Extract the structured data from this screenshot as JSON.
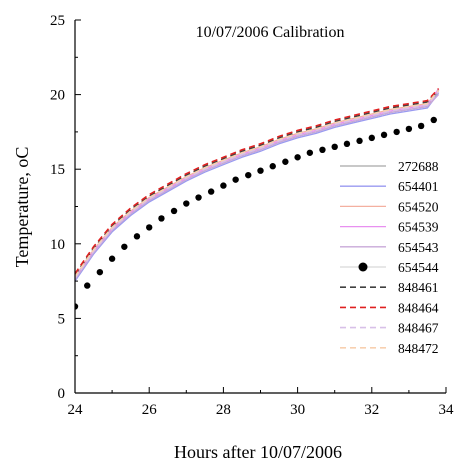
{
  "chart_data": {
    "type": "line",
    "title": "10/07/2006 Calibration",
    "xlabel": "Hours after 10/07/2006",
    "ylabel": "Temperature, ",
    "ylabel_unit": "oC",
    "xlim": [
      24,
      34
    ],
    "ylim": [
      0,
      25
    ],
    "xticks": [
      "24",
      "26",
      "28",
      "30",
      "32",
      "34"
    ],
    "yticks": [
      "0",
      "5",
      "10",
      "15",
      "20",
      "25"
    ],
    "grid": false,
    "legend_position": "right",
    "series": [
      {
        "name": "272688",
        "color": "#a8a8a8",
        "style": "solid",
        "marker": "none",
        "x": [
          24,
          24.5,
          25,
          25.5,
          26,
          26.5,
          27,
          27.5,
          28,
          28.5,
          29,
          29.5,
          30,
          30.5,
          31,
          31.5,
          32,
          32.5,
          33,
          33.5,
          33.8
        ],
        "y": [
          7.6,
          9.4,
          10.9,
          12.0,
          12.9,
          13.6,
          14.3,
          14.9,
          15.4,
          15.9,
          16.3,
          16.8,
          17.2,
          17.5,
          17.9,
          18.2,
          18.5,
          18.8,
          19.0,
          19.2,
          20.2
        ]
      },
      {
        "name": "654401",
        "color": "#9a9af0",
        "style": "solid",
        "marker": "none",
        "x": [
          24,
          24.5,
          25,
          25.5,
          26,
          26.5,
          27,
          27.5,
          28,
          28.5,
          29,
          29.5,
          30,
          30.5,
          31,
          31.5,
          32,
          32.5,
          33,
          33.5,
          33.8
        ],
        "y": [
          7.5,
          9.3,
          10.8,
          11.9,
          12.8,
          13.5,
          14.2,
          14.8,
          15.3,
          15.8,
          16.2,
          16.7,
          17.1,
          17.4,
          17.8,
          18.1,
          18.4,
          18.7,
          18.9,
          19.1,
          20.1
        ]
      },
      {
        "name": "654520",
        "color": "#f4b0a0",
        "style": "solid",
        "marker": "none",
        "x": [
          24,
          24.5,
          25,
          25.5,
          26,
          26.5,
          27,
          27.5,
          28,
          28.5,
          29,
          29.5,
          30,
          30.5,
          31,
          31.5,
          32,
          32.5,
          33,
          33.5,
          33.8
        ],
        "y": [
          7.8,
          9.6,
          11.1,
          12.2,
          13.1,
          13.8,
          14.5,
          15.1,
          15.6,
          16.1,
          16.5,
          17.0,
          17.4,
          17.7,
          18.1,
          18.4,
          18.7,
          19.0,
          19.2,
          19.4,
          20.3
        ]
      },
      {
        "name": "654539",
        "color": "#e890f0",
        "style": "solid",
        "marker": "none",
        "x": [
          24,
          24.5,
          25,
          25.5,
          26,
          26.5,
          27,
          27.5,
          28,
          28.5,
          29,
          29.5,
          30,
          30.5,
          31,
          31.5,
          32,
          32.5,
          33,
          33.5,
          33.8
        ],
        "y": [
          7.7,
          9.5,
          11.0,
          12.1,
          13.0,
          13.7,
          14.4,
          15.0,
          15.5,
          16.0,
          16.4,
          16.9,
          17.3,
          17.6,
          18.0,
          18.3,
          18.6,
          18.9,
          19.1,
          19.3,
          20.4
        ]
      },
      {
        "name": "654543",
        "color": "#c8a8d8",
        "style": "solid",
        "marker": "none",
        "x": [
          24,
          24.5,
          25,
          25.5,
          26,
          26.5,
          27,
          27.5,
          28,
          28.5,
          29,
          29.5,
          30,
          30.5,
          31,
          31.5,
          32,
          32.5,
          33,
          33.5,
          33.8
        ],
        "y": [
          7.6,
          9.4,
          10.9,
          12.0,
          12.9,
          13.6,
          14.3,
          14.9,
          15.4,
          15.9,
          16.3,
          16.8,
          17.2,
          17.5,
          17.9,
          18.2,
          18.5,
          18.8,
          19.0,
          19.2,
          20.0
        ]
      },
      {
        "name": "654544",
        "color": "#000000",
        "style": "none",
        "marker": "circle",
        "x": [
          24,
          24.33,
          24.67,
          25,
          25.33,
          25.67,
          26,
          26.33,
          26.67,
          27,
          27.33,
          27.67,
          28,
          28.33,
          28.67,
          29,
          29.33,
          29.67,
          30,
          30.33,
          30.67,
          31,
          31.33,
          31.67,
          32,
          32.33,
          32.67,
          33,
          33.33,
          33.67
        ],
        "y": [
          5.8,
          7.2,
          8.1,
          9.0,
          9.8,
          10.5,
          11.1,
          11.7,
          12.2,
          12.7,
          13.1,
          13.5,
          13.9,
          14.3,
          14.6,
          14.9,
          15.2,
          15.5,
          15.8,
          16.1,
          16.3,
          16.5,
          16.7,
          16.9,
          17.1,
          17.3,
          17.5,
          17.7,
          17.9,
          18.3
        ]
      },
      {
        "name": "848461",
        "color": "#404040",
        "style": "dashed",
        "marker": "none",
        "x": [
          24,
          24.5,
          25,
          25.5,
          26,
          26.5,
          27,
          27.5,
          28,
          28.5,
          29,
          29.5,
          30,
          30.5,
          31,
          31.5,
          32,
          32.5,
          33,
          33.5,
          33.8
        ],
        "y": [
          7.9,
          9.7,
          11.2,
          12.3,
          13.2,
          13.9,
          14.6,
          15.2,
          15.7,
          16.2,
          16.6,
          17.1,
          17.5,
          17.8,
          18.2,
          18.5,
          18.8,
          19.1,
          19.3,
          19.5,
          20.3
        ]
      },
      {
        "name": "848464",
        "color": "#e02020",
        "style": "dashed",
        "marker": "none",
        "x": [
          24,
          24.5,
          25,
          25.5,
          26,
          26.5,
          27,
          27.5,
          28,
          28.5,
          29,
          29.5,
          30,
          30.5,
          31,
          31.5,
          32,
          32.5,
          33,
          33.5,
          33.8
        ],
        "y": [
          8.0,
          9.8,
          11.3,
          12.4,
          13.3,
          14.0,
          14.7,
          15.3,
          15.8,
          16.3,
          16.7,
          17.2,
          17.6,
          17.9,
          18.3,
          18.6,
          18.9,
          19.2,
          19.4,
          19.6,
          20.4
        ]
      },
      {
        "name": "848467",
        "color": "#d8c0e8",
        "style": "dashed",
        "marker": "none",
        "x": [
          24,
          24.5,
          25,
          25.5,
          26,
          26.5,
          27,
          27.5,
          28,
          28.5,
          29,
          29.5,
          30,
          30.5,
          31,
          31.5,
          32,
          32.5,
          33,
          33.5,
          33.8
        ],
        "y": [
          7.7,
          9.5,
          11.0,
          12.1,
          13.0,
          13.7,
          14.4,
          15.0,
          15.5,
          16.0,
          16.4,
          16.9,
          17.3,
          17.6,
          18.0,
          18.3,
          18.6,
          18.9,
          19.1,
          19.3,
          20.2
        ]
      },
      {
        "name": "848472",
        "color": "#f8d0b0",
        "style": "dashed",
        "marker": "none",
        "x": [
          24,
          24.5,
          25,
          25.5,
          26,
          26.5,
          27,
          27.5,
          28,
          28.5,
          29,
          29.5,
          30,
          30.5,
          31,
          31.5,
          32,
          32.5,
          33,
          33.5,
          33.8
        ],
        "y": [
          7.8,
          9.6,
          11.1,
          12.2,
          13.1,
          13.8,
          14.5,
          15.1,
          15.6,
          16.1,
          16.5,
          17.0,
          17.4,
          17.7,
          18.1,
          18.4,
          18.7,
          19.0,
          19.2,
          19.4,
          20.3
        ]
      }
    ]
  }
}
